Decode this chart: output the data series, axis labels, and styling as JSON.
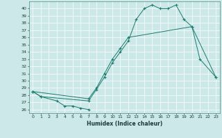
{
  "xlabel": "Humidex (Indice chaleur)",
  "xlim": [
    -0.5,
    23.5
  ],
  "ylim": [
    25.5,
    41.0
  ],
  "xticks": [
    0,
    1,
    2,
    3,
    4,
    5,
    6,
    7,
    8,
    9,
    10,
    11,
    12,
    13,
    14,
    15,
    16,
    17,
    18,
    19,
    20,
    21,
    22,
    23
  ],
  "yticks": [
    26,
    27,
    28,
    29,
    30,
    31,
    32,
    33,
    34,
    35,
    36,
    37,
    38,
    39,
    40
  ],
  "bg_color": "#cce8e8",
  "line_color": "#1a7a6e",
  "grid_color": "#ffffff",
  "curve_top": {
    "x": [
      0,
      1,
      7,
      8,
      9,
      10,
      11,
      12,
      13,
      14,
      15,
      16,
      17,
      18,
      19,
      20,
      21,
      23
    ],
    "y": [
      28.5,
      27.8,
      27.2,
      28.8,
      30.5,
      32.5,
      34.0,
      35.5,
      38.5,
      40.0,
      40.5,
      40.0,
      40.0,
      40.5,
      38.5,
      37.5,
      33.0,
      30.5
    ]
  },
  "curve_bot": {
    "x": [
      0,
      1,
      3,
      4,
      5,
      6,
      7
    ],
    "y": [
      28.5,
      27.8,
      27.2,
      26.5,
      26.5,
      26.2,
      26.0
    ]
  },
  "curve_mid": {
    "x": [
      0,
      7,
      8,
      9,
      10,
      11,
      12,
      20,
      23
    ],
    "y": [
      28.5,
      27.5,
      29.0,
      31.0,
      33.0,
      34.5,
      36.0,
      37.5,
      30.5
    ]
  }
}
